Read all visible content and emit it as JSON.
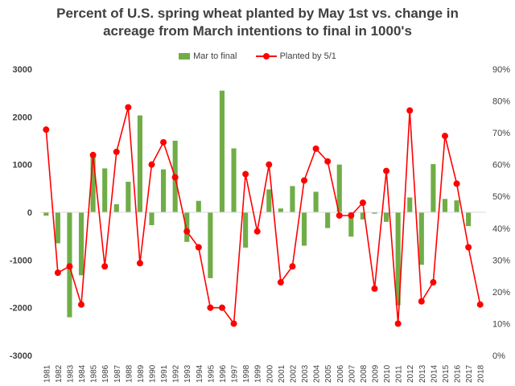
{
  "chart_data": {
    "type": "bar+line",
    "title_line1": "Percent of U.S. spring wheat planted by May 1st vs. change in",
    "title_line2": "acreage from March intentions to final in 1000's",
    "legend_position": "top",
    "grid": false,
    "categories": [
      "1981",
      "1982",
      "1983",
      "1984",
      "1985",
      "1986",
      "1987",
      "1988",
      "1989",
      "1990",
      "1991",
      "1992",
      "1993",
      "1994",
      "1995",
      "1996",
      "1997",
      "1998",
      "1999",
      "2000",
      "2001",
      "2002",
      "2003",
      "2004",
      "2005",
      "2006",
      "2007",
      "2008",
      "2009",
      "2010",
      "2011",
      "2012",
      "2013",
      "2014",
      "2015",
      "2016",
      "2017",
      "2018"
    ],
    "left_axis": {
      "min": -3000,
      "max": 3000,
      "ticks": [
        "3000",
        "2000",
        "1000",
        "0",
        "-1000",
        "-2000",
        "-3000"
      ]
    },
    "right_axis": {
      "min": 0,
      "max": 90,
      "ticks": [
        "90%",
        "80%",
        "70%",
        "60%",
        "50%",
        "40%",
        "30%",
        "20%",
        "10%",
        "0%"
      ]
    },
    "series": [
      {
        "name": "Mar to final",
        "type": "bar",
        "axis": "left",
        "color": "#70ad47",
        "values": [
          -70,
          -650,
          -2200,
          -1320,
          1170,
          920,
          170,
          640,
          2030,
          -270,
          900,
          1500,
          -620,
          240,
          -1380,
          2550,
          1340,
          -740,
          0,
          480,
          80,
          550,
          -700,
          430,
          -330,
          1000,
          -510,
          -150,
          -30,
          -200,
          -1950,
          310,
          -1100,
          1010,
          280,
          250,
          -290,
          0
        ]
      },
      {
        "name": "Planted by 5/1",
        "type": "line",
        "axis": "right",
        "color": "#ff0000",
        "values": [
          71,
          26,
          28,
          16,
          63,
          28,
          64,
          78,
          29,
          60,
          67,
          56,
          39,
          34,
          15,
          15,
          10,
          57,
          39,
          60,
          23,
          28,
          55,
          65,
          61,
          44,
          44,
          48,
          21,
          58,
          10,
          77,
          17,
          23,
          69,
          54,
          34,
          16
        ]
      }
    ]
  }
}
